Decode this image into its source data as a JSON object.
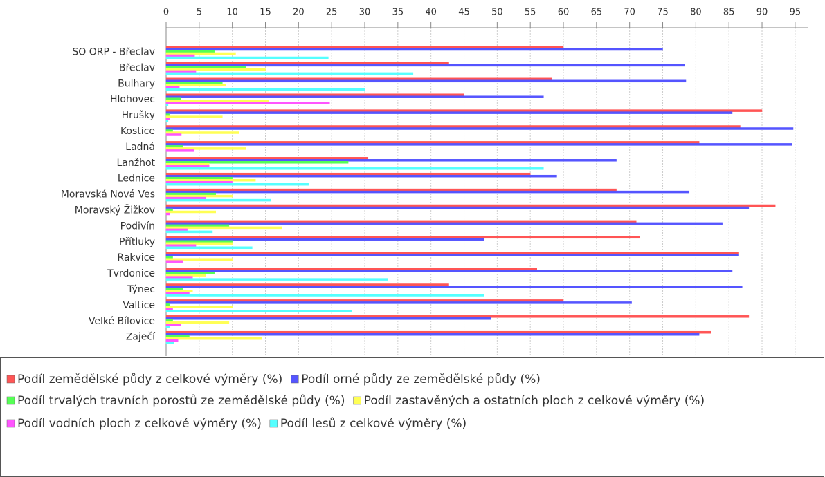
{
  "chart_data": {
    "type": "bar",
    "orientation": "horizontal",
    "categories": [
      "SO ORP  - Břeclav",
      "Břeclav",
      "Bulhary",
      "Hlohovec",
      "Hrušky",
      "Kostice",
      "Ladná",
      "Lanžhot",
      "Lednice",
      "Moravská Nová Ves",
      "Moravský Žižkov",
      "Podivín",
      "Přítluky",
      "Rakvice",
      "Tvrdonice",
      "Týnec",
      "Valtice",
      "Velké Bílovice",
      "Zaječí"
    ],
    "series": [
      {
        "name": "Podíl zemědělské půdy z celkové výměry (%)",
        "color": "#ff5555",
        "values": [
          60,
          42.7,
          58.3,
          45,
          90,
          86.7,
          80.5,
          30.5,
          55,
          68,
          92,
          71,
          71.5,
          86.5,
          56,
          42.7,
          60,
          88,
          82.3
        ]
      },
      {
        "name": "Podíl orné půdy ze zemědělské půdy (%)",
        "color": "#5555ff",
        "values": [
          75,
          78.3,
          78.5,
          57,
          85.5,
          94.7,
          94.5,
          68,
          59,
          79,
          88,
          84,
          48,
          86.5,
          85.5,
          87,
          70.3,
          49,
          80.5
        ]
      },
      {
        "name": "Podíl trvalých travních porostů ze zemědělské půdy (%)",
        "color": "#55ff55",
        "values": [
          7.3,
          12,
          8.5,
          2.2,
          0.5,
          1,
          2.5,
          27.5,
          10,
          7.5,
          1,
          9.5,
          10,
          1,
          7.3,
          2.5,
          0.5,
          1,
          3.5
        ]
      },
      {
        "name": "Podíl zastavěných a ostatních ploch z celkové výměry (%)",
        "color": "#ffff55",
        "values": [
          10.5,
          15,
          9,
          15.5,
          8.5,
          11,
          12,
          6.5,
          13.5,
          10,
          7.5,
          17.5,
          10,
          10,
          6,
          4,
          10,
          9.5,
          14.5
        ]
      },
      {
        "name": "Podíl vodních ploch z celkové výměry (%)",
        "color": "#ff55ff",
        "values": [
          4.3,
          4.5,
          2,
          24.7,
          0.5,
          2.3,
          4.2,
          6.5,
          10,
          6,
          0.5,
          3.2,
          4.5,
          2.5,
          4,
          3.5,
          1,
          2.2,
          1.8
        ]
      },
      {
        "name": "Podíl lesů z celkové výměry (%)",
        "color": "#55ffff",
        "values": [
          24.5,
          37.3,
          30,
          0.3,
          0.3,
          0,
          0,
          57,
          21.5,
          15.8,
          0,
          7,
          13,
          0,
          33.5,
          48,
          28,
          0.5,
          1.2
        ]
      }
    ],
    "xlim": [
      0,
      97
    ],
    "xticks": [
      0,
      5,
      10,
      15,
      20,
      25,
      30,
      35,
      40,
      45,
      50,
      55,
      60,
      65,
      70,
      75,
      80,
      85,
      90,
      95
    ],
    "grid": true
  }
}
